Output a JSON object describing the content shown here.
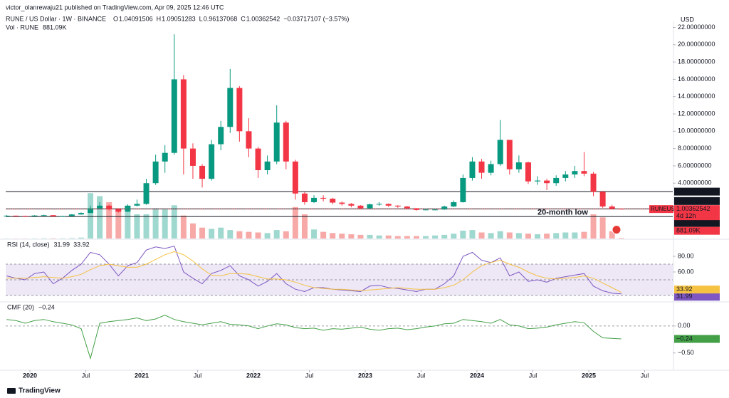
{
  "header": {
    "publisher": "victor_olanrewaju21 published on TradingView.com, Apr 09, 2025 12:46 UTC",
    "symbol": "RUNE / US Dollar · 1W · BINANCE",
    "ohlc": [
      {
        "label": "O",
        "value": 1.04091506
      },
      {
        "label": "H",
        "value": 1.09051283
      },
      {
        "label": "L",
        "value": 0.96137068
      },
      {
        "label": "C",
        "value": 1.00362542
      }
    ],
    "change": "−0.03717107 (−3.57%)",
    "volume_title": "Vol · RUNE",
    "currency": "USD"
  },
  "footer": {
    "brand": "TradingView"
  },
  "chart_data": [
    {
      "type": "candlestick",
      "title": "RUNE / US Dollar · 1W · BINANCE",
      "x": [
        "2019-10",
        "2019-11",
        "2019-12",
        "2020-01",
        "2020-02",
        "2020-03",
        "2020-04",
        "2020-05",
        "2020-06",
        "2020-07",
        "2020-08",
        "2020-09",
        "2020-10",
        "2020-11",
        "2020-12",
        "2021-01",
        "2021-02",
        "2021-03",
        "2021-04",
        "2021-05",
        "2021-06",
        "2021-07",
        "2021-08",
        "2021-09",
        "2021-10",
        "2021-11",
        "2021-12",
        "2022-01",
        "2022-02",
        "2022-03",
        "2022-04",
        "2022-05",
        "2022-06",
        "2022-07",
        "2022-08",
        "2022-09",
        "2022-10",
        "2022-11",
        "2022-12",
        "2023-01",
        "2023-02",
        "2023-03",
        "2023-04",
        "2023-05",
        "2023-06",
        "2023-07",
        "2023-08",
        "2023-09",
        "2023-10",
        "2023-11",
        "2023-12",
        "2024-01",
        "2024-02",
        "2024-03",
        "2024-04",
        "2024-05",
        "2024-06",
        "2024-07",
        "2024-08",
        "2024-09",
        "2024-10",
        "2024-11",
        "2024-12",
        "2025-01",
        "2025-02",
        "2025-03",
        "2025-04"
      ],
      "open": [
        0.22,
        0.24,
        0.21,
        0.2,
        0.26,
        0.3,
        0.16,
        0.2,
        0.38,
        0.55,
        1.1,
        1.4,
        1.0,
        0.7,
        1.4,
        1.6,
        4.0,
        6.5,
        7.5,
        16.0,
        8.0,
        6.0,
        4.5,
        8.5,
        10.5,
        15.0,
        10.0,
        8.0,
        5.5,
        6.5,
        11.0,
        6.5,
        2.8,
        1.8,
        2.3,
        2.2,
        1.75,
        1.6,
        1.4,
        1.1,
        1.55,
        1.6,
        1.4,
        1.3,
        1.1,
        0.9,
        0.95,
        0.95,
        1.3,
        1.8,
        4.6,
        6.5,
        5.2,
        6.2,
        9.0,
        5.6,
        6.4,
        4.2,
        4.3,
        4.0,
        4.6,
        5.0,
        5.4,
        5.1,
        3.0,
        1.3,
        1.04
      ],
      "high": [
        0.32,
        0.27,
        0.24,
        0.3,
        0.36,
        0.31,
        0.24,
        0.42,
        0.62,
        1.4,
        1.8,
        1.5,
        1.1,
        1.55,
        2.1,
        4.5,
        7.3,
        8.4,
        21.2,
        16.5,
        8.6,
        6.2,
        9.0,
        11.2,
        17.2,
        15.2,
        11.5,
        8.2,
        7.2,
        13.0,
        11.2,
        6.7,
        3.0,
        2.6,
        2.6,
        2.3,
        1.9,
        1.7,
        1.45,
        1.65,
        1.8,
        1.65,
        1.45,
        1.35,
        1.12,
        1.05,
        1.05,
        1.4,
        2.0,
        5.0,
        7.0,
        6.8,
        6.6,
        11.3,
        9.0,
        7.2,
        6.5,
        4.8,
        4.5,
        4.9,
        5.4,
        6.0,
        7.6,
        5.3,
        3.1,
        1.5,
        1.09
      ],
      "low": [
        0.18,
        0.19,
        0.17,
        0.19,
        0.25,
        0.11,
        0.15,
        0.19,
        0.35,
        0.52,
        1.0,
        0.85,
        0.6,
        0.68,
        1.3,
        1.5,
        3.8,
        5.2,
        7.3,
        5.0,
        4.5,
        3.5,
        4.3,
        7.8,
        9.8,
        8.8,
        7.0,
        4.6,
        5.0,
        6.2,
        5.6,
        2.1,
        1.5,
        1.7,
        1.9,
        1.55,
        1.4,
        1.2,
        1.0,
        1.05,
        1.4,
        1.25,
        1.15,
        1.0,
        0.82,
        0.85,
        0.88,
        0.92,
        1.25,
        1.75,
        4.3,
        4.5,
        4.9,
        6.0,
        5.0,
        5.2,
        3.9,
        3.8,
        3.2,
        3.7,
        4.2,
        4.6,
        4.8,
        2.5,
        1.15,
        0.95,
        0.96
      ],
      "close": [
        0.24,
        0.21,
        0.2,
        0.26,
        0.3,
        0.16,
        0.2,
        0.38,
        0.55,
        1.1,
        1.4,
        1.0,
        0.7,
        1.4,
        1.6,
        4.0,
        6.5,
        7.5,
        16.0,
        8.0,
        6.0,
        4.5,
        8.5,
        10.5,
        15.0,
        10.0,
        8.0,
        5.5,
        6.5,
        11.0,
        6.5,
        2.8,
        1.8,
        2.3,
        2.2,
        1.75,
        1.6,
        1.4,
        1.1,
        1.55,
        1.6,
        1.4,
        1.3,
        1.1,
        0.9,
        0.95,
        0.95,
        1.3,
        1.8,
        4.6,
        6.5,
        5.2,
        6.2,
        9.0,
        5.6,
        6.4,
        4.2,
        4.3,
        4.0,
        4.6,
        5.0,
        5.4,
        5.1,
        3.0,
        1.3,
        1.04,
        1.0
      ],
      "up_color": "#089981",
      "down_color": "#f23645",
      "volume": {
        "values": [
          300,
          300,
          300,
          400,
          500,
          600,
          500,
          800,
          1500,
          75000,
          70000,
          60000,
          50000,
          45000,
          40000,
          40000,
          50000,
          48000,
          55000,
          38000,
          25000,
          18000,
          16000,
          18000,
          14000,
          12000,
          11000,
          10000,
          9000,
          14000,
          12000,
          52000,
          40000,
          15000,
          11000,
          9000,
          8000,
          7000,
          6000,
          6000,
          5000,
          5000,
          4000,
          4000,
          4000,
          4000,
          5000,
          6000,
          8000,
          13000,
          14000,
          10000,
          9000,
          12000,
          10000,
          9000,
          8000,
          7000,
          8000,
          9000,
          10000,
          10000,
          11000,
          40000,
          35000,
          12000,
          881.09
        ],
        "ylim": [
          0,
          100000
        ],
        "up_color": "#9fd8cf",
        "down_color": "#f7a9a7",
        "last_label": "881.09K"
      },
      "ylim": [
        -2.4,
        22.7
      ],
      "yticks": [
        {
          "value": 4,
          "label": "4.00000000"
        },
        {
          "value": 6,
          "label": "6.00000000"
        },
        {
          "value": 8,
          "label": "8.00000000"
        },
        {
          "value": 10,
          "label": "10.00000000"
        },
        {
          "value": 12,
          "label": "12.00000000"
        },
        {
          "value": 14,
          "label": "14.00000000"
        },
        {
          "value": 16,
          "label": "16.00000000"
        },
        {
          "value": 18,
          "label": "18.00000000"
        },
        {
          "value": 20,
          "label": "20.00000000"
        },
        {
          "value": 22,
          "label": "22.00000000"
        }
      ],
      "levels": [
        3.02177991,
        1.02672172,
        0.13722109
      ],
      "last_price": {
        "value": 1.00362542,
        "symbol": "RUNEUSD",
        "countdown": "4d 12h"
      },
      "annotation": "20-month low",
      "xticks": [
        {
          "value": "2020-01",
          "label": "2020"
        },
        {
          "value": "2020-07",
          "label": "Jul"
        },
        {
          "value": "2021-01",
          "label": "2021"
        },
        {
          "value": "2021-07",
          "label": "Jul"
        },
        {
          "value": "2022-01",
          "label": "2022"
        },
        {
          "value": "2022-07",
          "label": "Jul"
        },
        {
          "value": "2023-01",
          "label": "2023"
        },
        {
          "value": "2023-07",
          "label": "Jul"
        },
        {
          "value": "2024-01",
          "label": "2024"
        },
        {
          "value": "2024-07",
          "label": "Jul"
        },
        {
          "value": "2025-01",
          "label": "2025"
        },
        {
          "value": "2025-07",
          "label": "Jul"
        }
      ]
    },
    {
      "type": "line",
      "title": "RSI (14, close)",
      "series": [
        {
          "color": "#7e57c2",
          "values": [
            55,
            52,
            50,
            58,
            60,
            45,
            52,
            62,
            70,
            85,
            82,
            70,
            55,
            68,
            72,
            88,
            92,
            90,
            93,
            60,
            52,
            45,
            58,
            62,
            68,
            55,
            50,
            42,
            48,
            58,
            45,
            38,
            35,
            40,
            40,
            38,
            37,
            36,
            35,
            42,
            43,
            40,
            39,
            37,
            35,
            38,
            38,
            45,
            55,
            80,
            85,
            75,
            72,
            78,
            55,
            60,
            48,
            50,
            47,
            52,
            54,
            56,
            58,
            42,
            36,
            33,
            31.99
          ]
        },
        {
          "color": "#f5c242",
          "values": [
            52,
            52,
            52,
            53,
            54,
            53,
            52,
            54,
            57,
            63,
            68,
            70,
            68,
            66,
            66,
            70,
            76,
            82,
            86,
            82,
            74,
            64,
            56,
            55,
            58,
            58,
            57,
            54,
            51,
            51,
            50,
            47,
            43,
            40,
            39,
            38,
            38,
            37,
            36,
            37,
            38,
            39,
            40,
            39,
            38,
            38,
            38,
            40,
            43,
            50,
            60,
            68,
            72,
            75,
            70,
            66,
            60,
            55,
            52,
            51,
            52,
            53,
            55,
            52,
            46,
            40,
            33.92
          ]
        }
      ],
      "ylim": [
        23.6,
        100
      ],
      "yticks": [
        {
          "value": 80,
          "label": "80.00"
        },
        {
          "value": 60,
          "label": "60.00"
        }
      ],
      "levels": [
        70,
        50,
        30
      ],
      "band_color": "#ede7f6"
    },
    {
      "type": "line",
      "title": "CMF (20)",
      "series": [
        {
          "color": "#43a047",
          "last_label": "−0.24",
          "values": [
            0.12,
            0.1,
            0.05,
            0.1,
            0.12,
            0.08,
            0.05,
            0.02,
            -0.05,
            -0.6,
            0.05,
            0.08,
            0.1,
            0.12,
            0.15,
            0.1,
            0.13,
            0.2,
            0.12,
            0.08,
            0.05,
            0.02,
            0.05,
            0.08,
            0.03,
            0.02,
            0.0,
            -0.05,
            0.0,
            0.04,
            0.02,
            -0.03,
            -0.05,
            -0.04,
            -0.08,
            -0.05,
            -0.06,
            -0.04,
            -0.02,
            -0.06,
            -0.08,
            -0.05,
            -0.04,
            -0.07,
            -0.05,
            -0.02,
            0.0,
            0.04,
            0.05,
            0.12,
            0.1,
            0.08,
            0.05,
            0.12,
            0.02,
            0.0,
            -0.05,
            -0.04,
            -0.02,
            0.02,
            0.05,
            0.08,
            0.06,
            -0.1,
            -0.22,
            -0.23,
            -0.24
          ]
        }
      ],
      "ylim": [
        -0.82,
        0.42
      ],
      "yticks": [
        {
          "value": 0,
          "label": "0.00"
        },
        {
          "value": -0.5,
          "label": "−0.50"
        }
      ],
      "levels": [
        0
      ]
    }
  ]
}
